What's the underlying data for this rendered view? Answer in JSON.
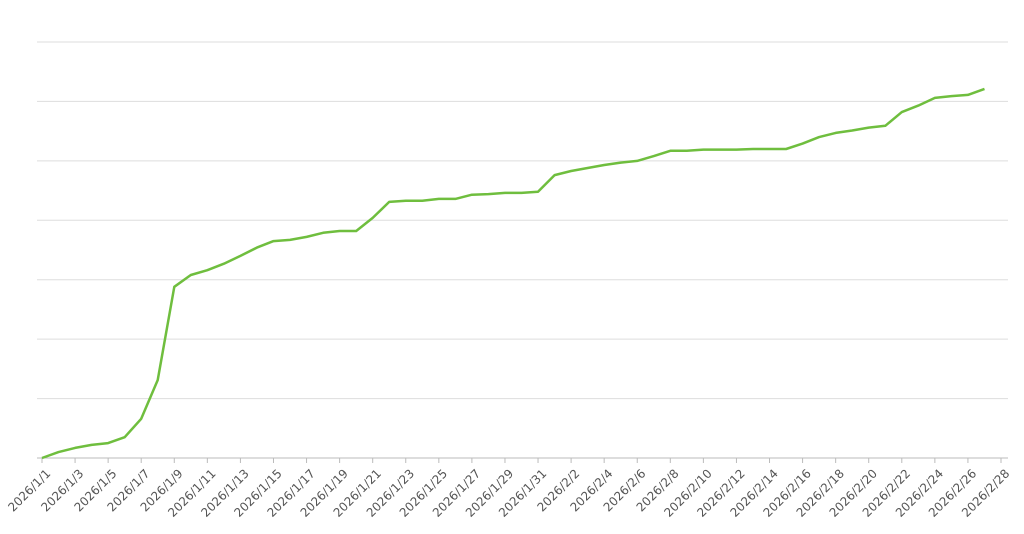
{
  "chart_data": {
    "type": "line",
    "grid": true,
    "ylim": [
      0,
      7
    ],
    "yticks": [
      0,
      1,
      2,
      3,
      4,
      5,
      6,
      7
    ],
    "categories": [
      "2026/1/1",
      null,
      "2026/1/3",
      null,
      "2026/1/5",
      null,
      "2026/1/7",
      null,
      "2026/1/9",
      null,
      "2026/1/11",
      null,
      "2026/1/13",
      null,
      "2026/1/15",
      null,
      "2026/1/17",
      null,
      "2026/1/19",
      null,
      "2026/1/21",
      null,
      "2026/1/23",
      null,
      "2026/1/25",
      null,
      "2026/1/27",
      null,
      "2026/1/29",
      null,
      "2026/1/31",
      null,
      "2026/2/2",
      null,
      "2026/2/4",
      null,
      "2026/2/6",
      null,
      "2026/2/8",
      null,
      "2026/2/10",
      null,
      "2026/2/12",
      null,
      "2026/2/14",
      null,
      "2026/2/16",
      null,
      "2026/2/18",
      null,
      "2026/2/20",
      null,
      "2026/2/22",
      null,
      "2026/2/24",
      null,
      "2026/2/26",
      null,
      "2026/2/28"
    ],
    "series": [
      {
        "color": "#6fbe3e",
        "values": [
          0,
          0.1,
          0.17,
          0.22,
          0.25,
          0.35,
          0.66,
          1.31,
          2.88,
          3.08,
          3.16,
          3.27,
          3.4,
          3.54,
          3.65,
          3.67,
          3.72,
          3.79,
          3.82,
          3.82,
          4.04,
          4.31,
          4.33,
          4.33,
          4.36,
          4.36,
          4.43,
          4.44,
          4.46,
          4.46,
          4.48,
          4.76,
          4.83,
          4.88,
          4.93,
          4.97,
          5.0,
          5.08,
          5.17,
          5.17,
          5.19,
          5.19,
          5.19,
          5.2,
          5.2,
          5.2,
          5.29,
          5.4,
          5.47,
          5.51,
          5.56,
          5.59,
          5.82,
          5.93,
          6.06,
          6.09,
          6.11,
          6.21,
          null
        ]
      }
    ]
  }
}
